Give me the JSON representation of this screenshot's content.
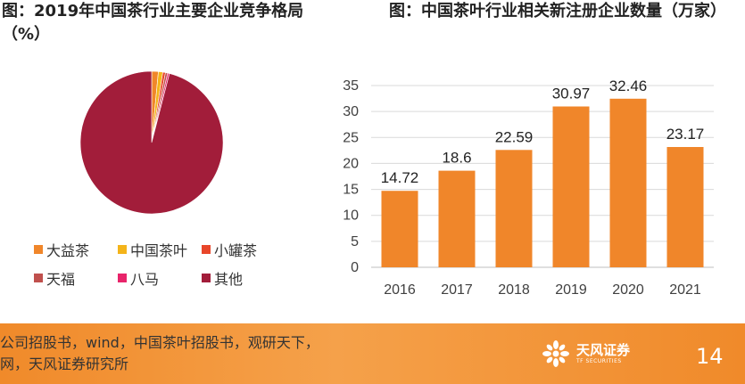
{
  "left_title": "图：2019年中国茶行业主要企业竞争格局（%）",
  "right_title": "图：中国茶叶行业相关新注册企业数量（万家）",
  "chart_data": [
    {
      "type": "pie",
      "title": "图：2019年中国茶行业主要企业竞争格局（%）",
      "categories": [
        "大益茶",
        "中国茶叶",
        "小罐茶",
        "天福",
        "八马",
        "其他"
      ],
      "values": [
        1.5,
        1.0,
        0.6,
        0.5,
        0.4,
        96.0
      ],
      "colors": [
        "#f0862a",
        "#f4b41a",
        "#e8462a",
        "#c0504d",
        "#e8246a",
        "#a21d3a"
      ],
      "legend_position": "bottom"
    },
    {
      "type": "bar",
      "title": "图：中国茶叶行业相关新注册企业数量（万家）",
      "categories": [
        "2016",
        "2017",
        "2018",
        "2019",
        "2020",
        "2021"
      ],
      "values": [
        14.72,
        18.6,
        22.59,
        30.97,
        32.46,
        23.17
      ],
      "data_labels": [
        "14.72",
        "18.6",
        "22.59",
        "30.97",
        "32.46",
        "23.17"
      ],
      "ylim": [
        0,
        35
      ],
      "yticks": [
        "0",
        "5",
        "10",
        "15",
        "20",
        "25",
        "30",
        "35"
      ],
      "grid": true,
      "bar_color": "#f0862a"
    }
  ],
  "footer": {
    "source_line1": "公司招股书，wind，中国茶叶招股书，观研天下，",
    "source_line2": "网，天风证券研究所",
    "logo_cn": "天风证券",
    "logo_en": "TF SECURITIES",
    "page_number": "14",
    "accent": "#f08a2a"
  }
}
